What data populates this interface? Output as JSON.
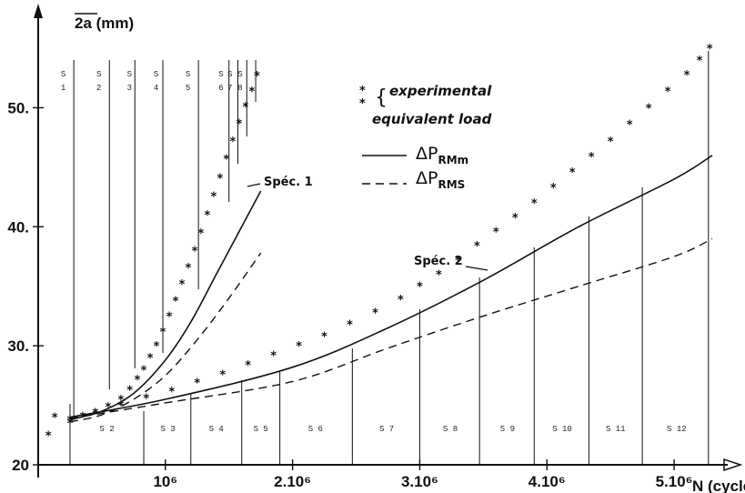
{
  "chart_data": {
    "type": "line",
    "title": "",
    "ylabel": "2a (mm)",
    "xlabel": "N (cycles",
    "xlim": [
      0,
      5.35
    ],
    "ylim": [
      20,
      55
    ],
    "x_ticks": [
      {
        "x": 1,
        "label": "10⁶"
      },
      {
        "x": 2,
        "label": "2.10⁶"
      },
      {
        "x": 3,
        "label": "3.10⁶"
      },
      {
        "x": 4,
        "label": "4.10⁶"
      },
      {
        "x": 5,
        "label": "5.10⁶"
      }
    ],
    "y_ticks": [
      {
        "y": 20,
        "label": "20"
      },
      {
        "y": 30,
        "label": "30."
      },
      {
        "y": 40,
        "label": "40."
      },
      {
        "y": 50,
        "label": "50."
      }
    ],
    "legend": [
      {
        "symbol": "*",
        "label": "experimental"
      },
      {
        "symbol": "",
        "label": "equivalent load"
      },
      {
        "symbol": "solid",
        "label": "ΔP",
        "sub": "RMm"
      },
      {
        "symbol": "dashed",
        "label": "ΔP",
        "sub": "RMS"
      }
    ],
    "specimens": [
      {
        "name": "Spéc. 1",
        "experimental": [
          [
            0.08,
            22.5
          ],
          [
            0.13,
            24.0
          ],
          [
            0.25,
            23.5
          ],
          [
            0.35,
            24.1
          ],
          [
            0.45,
            24.4
          ],
          [
            0.55,
            24.9
          ],
          [
            0.65,
            25.5
          ],
          [
            0.72,
            26.3
          ],
          [
            0.78,
            27.2
          ],
          [
            0.83,
            28.0
          ],
          [
            0.88,
            29.0
          ],
          [
            0.93,
            30.0
          ],
          [
            0.98,
            31.2
          ],
          [
            1.03,
            32.5
          ],
          [
            1.08,
            33.8
          ],
          [
            1.13,
            35.2
          ],
          [
            1.18,
            36.6
          ],
          [
            1.23,
            38.0
          ],
          [
            1.28,
            39.5
          ],
          [
            1.33,
            41.0
          ],
          [
            1.38,
            42.6
          ],
          [
            1.43,
            44.1
          ],
          [
            1.48,
            45.7
          ],
          [
            1.53,
            47.2
          ],
          [
            1.58,
            48.7
          ],
          [
            1.63,
            50.1
          ],
          [
            1.68,
            51.4
          ],
          [
            1.72,
            52.7
          ]
        ],
        "rmm": [
          [
            0.25,
            23.8
          ],
          [
            0.5,
            24.5
          ],
          [
            0.75,
            26.0
          ],
          [
            1.0,
            28.8
          ],
          [
            1.2,
            32.0
          ],
          [
            1.4,
            36.0
          ],
          [
            1.6,
            40.0
          ],
          [
            1.75,
            43.0
          ]
        ],
        "rms": [
          [
            0.25,
            23.6
          ],
          [
            0.5,
            24.2
          ],
          [
            0.75,
            25.5
          ],
          [
            1.0,
            27.5
          ],
          [
            1.25,
            30.5
          ],
          [
            1.5,
            34.0
          ],
          [
            1.75,
            37.8
          ]
        ],
        "segments": [
          "S 1",
          "S 2",
          "S 3",
          "S 4",
          "S 5",
          "S 6",
          "S 7",
          "S 8"
        ]
      },
      {
        "name": "Spéc. 2",
        "experimental": [
          [
            0.25,
            23.8
          ],
          [
            0.45,
            24.4
          ],
          [
            0.65,
            25.0
          ],
          [
            0.85,
            25.6
          ],
          [
            1.05,
            26.2
          ],
          [
            1.25,
            26.9
          ],
          [
            1.45,
            27.6
          ],
          [
            1.65,
            28.4
          ],
          [
            1.85,
            29.2
          ],
          [
            2.05,
            30.0
          ],
          [
            2.25,
            30.8
          ],
          [
            2.45,
            31.8
          ],
          [
            2.65,
            32.8
          ],
          [
            2.85,
            33.9
          ],
          [
            3.0,
            35.0
          ],
          [
            3.15,
            36.0
          ],
          [
            3.3,
            37.2
          ],
          [
            3.45,
            38.4
          ],
          [
            3.6,
            39.6
          ],
          [
            3.75,
            40.8
          ],
          [
            3.9,
            42.0
          ],
          [
            4.05,
            43.3
          ],
          [
            4.2,
            44.6
          ],
          [
            4.35,
            45.9
          ],
          [
            4.5,
            47.2
          ],
          [
            4.65,
            48.6
          ],
          [
            4.8,
            50.0
          ],
          [
            4.95,
            51.4
          ],
          [
            5.1,
            52.8
          ],
          [
            5.2,
            54.0
          ],
          [
            5.28,
            55.0
          ]
        ],
        "rmm": [
          [
            0.25,
            24.0
          ],
          [
            1.0,
            25.5
          ],
          [
            2.0,
            28.2
          ],
          [
            2.75,
            31.5
          ],
          [
            3.5,
            35.5
          ],
          [
            4.25,
            40.0
          ],
          [
            5.0,
            44.0
          ],
          [
            5.3,
            46.0
          ]
        ],
        "rms": [
          [
            0.25,
            23.9
          ],
          [
            1.0,
            25.2
          ],
          [
            2.0,
            27.0
          ],
          [
            2.75,
            29.8
          ],
          [
            3.5,
            32.5
          ],
          [
            4.25,
            35.0
          ],
          [
            5.0,
            37.5
          ],
          [
            5.3,
            39.0
          ]
        ],
        "segments": [
          "S 2",
          "S 3",
          "S 4",
          "S 5",
          "S 6",
          "S 7",
          "S 8",
          "S 9",
          "S 10",
          "S 11",
          "S 12"
        ]
      }
    ]
  }
}
